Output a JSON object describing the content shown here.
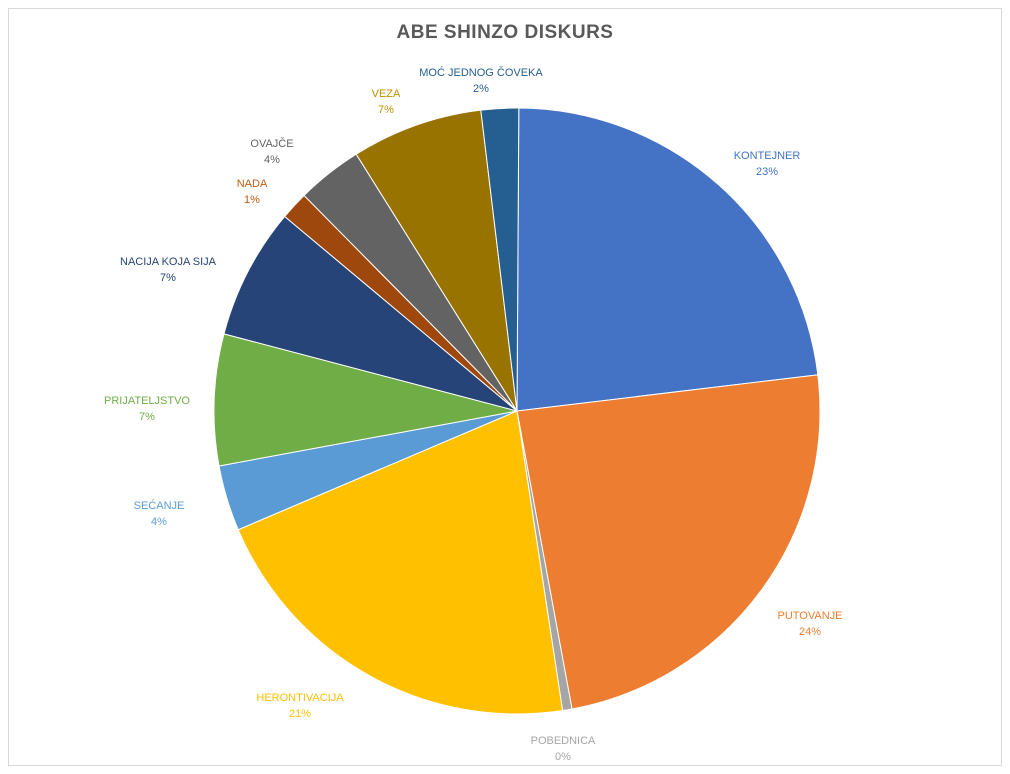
{
  "chart_data": {
    "type": "pie",
    "title": "ABE SHINZO DISKURS",
    "slices": [
      {
        "label": "KONTEJNER",
        "value": 23,
        "pct_label": "23%",
        "color": "#4472C4"
      },
      {
        "label": "PUTOVANJE",
        "value": 24,
        "pct_label": "24%",
        "color": "#ED7D31"
      },
      {
        "label": "POBEDNICA",
        "value": 0.5,
        "pct_label": "0%",
        "color": "#A5A5A5"
      },
      {
        "label": "HERONTIVACIJA",
        "value": 21,
        "pct_label": "21%",
        "color": "#FFC000"
      },
      {
        "label": "SEĆANJE",
        "value": 3.5,
        "pct_label": "4%",
        "color": "#5B9BD5"
      },
      {
        "label": "PRIJATELJSTVO",
        "value": 7,
        "pct_label": "7%",
        "color": "#70AD47"
      },
      {
        "label": "NACIJA KOJA SIJA",
        "value": 7,
        "pct_label": "7%",
        "color": "#264478"
      },
      {
        "label": "NADA",
        "value": 1.5,
        "pct_label": "1%",
        "color": "#9E480E"
      },
      {
        "label": "OVAJČE",
        "value": 3.5,
        "pct_label": "4%",
        "color": "#636363"
      },
      {
        "label": "VEZA",
        "value": 7,
        "pct_label": "7%",
        "color": "#997300"
      },
      {
        "label": "MOĆ JEDNOG ČOVEKA",
        "value": 2,
        "pct_label": "2%",
        "color": "#255E91"
      }
    ],
    "label_colors": [
      "#4472C4",
      "#ED7D31",
      "#A5A5A5",
      "#FFC000",
      "#5B9BD5",
      "#70AD47",
      "#264478",
      "#C55A11",
      "#636363",
      "#BF9000",
      "#255E91"
    ],
    "legend": "none"
  }
}
